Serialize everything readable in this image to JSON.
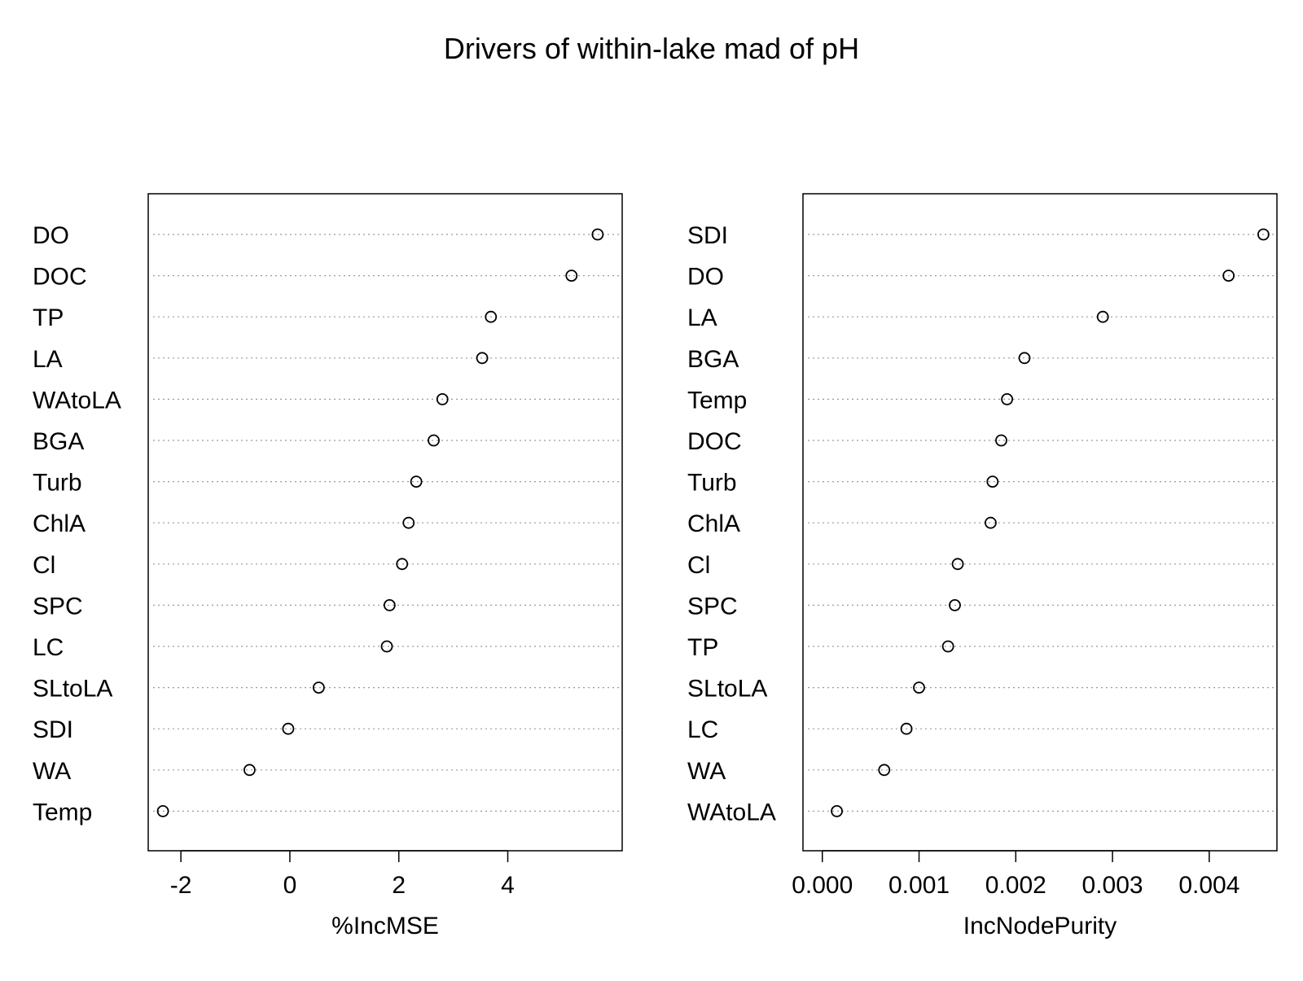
{
  "title": "Drivers of within-lake mad of pH",
  "chart_data": [
    {
      "type": "scatter",
      "subtype": "dotchart",
      "xlabel": "%IncMSE",
      "ylabel": "",
      "xlim": [
        -2.6,
        6.1
      ],
      "xticks": [
        -2,
        0,
        2,
        4
      ],
      "xtick_labels": [
        "-2",
        "0",
        "2",
        "4"
      ],
      "grid": "dotted horizontal guide lines",
      "categories": [
        "DO",
        "DOC",
        "TP",
        "LA",
        "WAtoLA",
        "BGA",
        "Turb",
        "ChlA",
        "Cl",
        "SPC",
        "LC",
        "SLtoLA",
        "SDI",
        "WA",
        "Temp"
      ],
      "values": [
        5.65,
        5.17,
        3.69,
        3.53,
        2.8,
        2.64,
        2.32,
        2.18,
        2.06,
        1.83,
        1.78,
        0.53,
        -0.03,
        -0.74,
        -2.33
      ]
    },
    {
      "type": "scatter",
      "subtype": "dotchart",
      "xlabel": "IncNodePurity",
      "ylabel": "",
      "xlim": [
        -0.0002,
        0.0047
      ],
      "xticks": [
        0.0,
        0.001,
        0.002,
        0.003,
        0.004
      ],
      "xtick_labels": [
        "0.000",
        "0.001",
        "0.002",
        "0.003",
        "0.004"
      ],
      "grid": "dotted horizontal guide lines",
      "categories": [
        "SDI",
        "DO",
        "LA",
        "BGA",
        "Temp",
        "DOC",
        "Turb",
        "ChlA",
        "Cl",
        "SPC",
        "TP",
        "SLtoLA",
        "LC",
        "WA",
        "WAtoLA"
      ],
      "values": [
        0.00456,
        0.0042,
        0.0029,
        0.00209,
        0.00191,
        0.00185,
        0.00176,
        0.00174,
        0.0014,
        0.00137,
        0.0013,
        0.001,
        0.00087,
        0.00064,
        0.00015
      ]
    }
  ]
}
